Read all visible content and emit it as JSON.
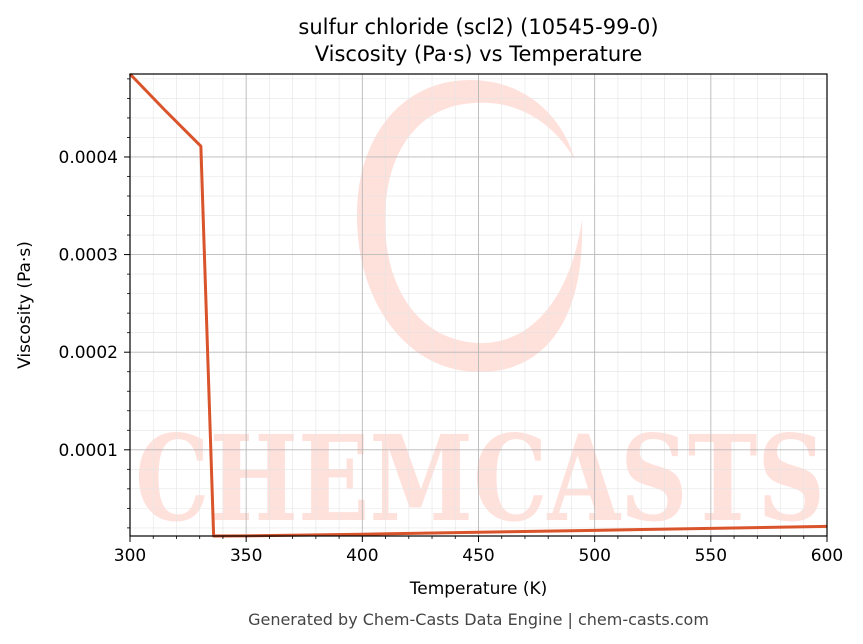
{
  "chart_data": {
    "type": "line",
    "title": "sulfur chloride (scl2) (10545-99-0)",
    "subtitle": "Viscosity (Pa·s) vs Temperature",
    "xlabel": "Temperature (K)",
    "ylabel": "Viscosity (Pa·s)",
    "xlim": [
      300,
      600
    ],
    "ylim": [
      1.17e-05,
      0.000485
    ],
    "x_ticks": [
      300,
      350,
      400,
      450,
      500,
      550,
      600
    ],
    "x_tick_labels": [
      "300",
      "350",
      "400",
      "450",
      "500",
      "550",
      "600"
    ],
    "y_ticks": [
      0.0001,
      0.0002,
      0.0003,
      0.0004
    ],
    "y_tick_labels": [
      "0.0001",
      "0.0002",
      "0.0003",
      "0.0004"
    ],
    "grid": true,
    "legend": "none",
    "series": [
      {
        "color": "#d9542b",
        "x": [
          300,
          315,
          330.5,
          336,
          350,
          400,
          450,
          500,
          550,
          600
        ],
        "y": [
          0.000485,
          0.000448,
          0.000411,
          1.17e-05,
          1.18e-05,
          1.35e-05,
          1.55e-05,
          1.75e-05,
          1.95e-05,
          2.15e-05
        ]
      }
    ]
  },
  "watermark": {
    "text": "CHEMCASTS",
    "color": "#ffe1dc"
  },
  "footer": "Generated by Chem-Casts Data Engine | chem-casts.com"
}
